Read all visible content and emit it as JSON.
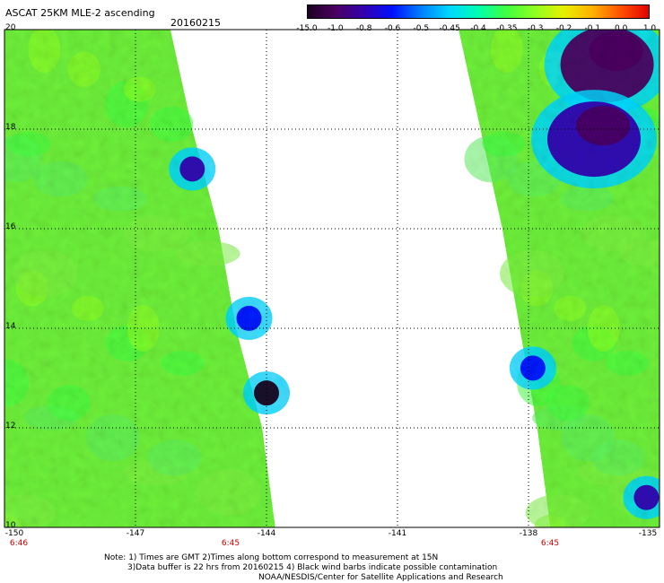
{
  "header": {
    "title": "ASCAT 25KM MLE-2 ascending",
    "date": "20160215"
  },
  "colorbar": {
    "labels": [
      "-15.0",
      "-1.0",
      "-0.8",
      "-0.6",
      "-0.5",
      "-0.45",
      "-0.4",
      "-0.35",
      "-0.3",
      "-0.2",
      "-0.1",
      "0.0",
      "1.0"
    ],
    "colors": [
      "#1a0020",
      "#4b0060",
      "#3300b0",
      "#0010ff",
      "#0080ff",
      "#00d8ff",
      "#00ffb0",
      "#40ff40",
      "#90ff20",
      "#e8f000",
      "#ffb000",
      "#ff5000",
      "#e00000"
    ]
  },
  "axes": {
    "y_labels": [
      "20",
      "18",
      "16",
      "14",
      "12",
      "10"
    ],
    "x_labels": [
      "-150",
      "-147",
      "-144",
      "-141",
      "-138",
      "-135"
    ],
    "time_labels": [
      "6:46",
      "6:45",
      "6:45"
    ]
  },
  "notes": {
    "line1": "Note: 1) Times are GMT 2)Times along bottom correspond to measurement at 15N",
    "line2": "3)Data buffer is 22 hrs from 20160215 4) Black wind barbs indicate possible contamination",
    "line3": "NOAA/NESDIS/Center for Satellite Applications and Research"
  },
  "map_data": {
    "lon_range": [
      -150,
      -135
    ],
    "lat_range": [
      10,
      20
    ],
    "left_swath": {
      "main_color": "#6ef03a",
      "west_edge_lon": -150,
      "east_edge": [
        [
          20,
          -146.2
        ],
        [
          18,
          -145.7
        ],
        [
          16,
          -145.1
        ],
        [
          14,
          -144.7
        ],
        [
          12,
          -144.1
        ],
        [
          10,
          -143.8
        ]
      ],
      "features": [
        {
          "value_class": "-0.8",
          "lat": 17.2,
          "lon": -145.7
        },
        {
          "value_class": "-0.6",
          "lat": 14.2,
          "lon": -144.4
        },
        {
          "value_class": "-15.0",
          "lat": 12.7,
          "lon": -144.0
        }
      ]
    },
    "right_swath": {
      "main_color": "#6ef03a",
      "east_edge_lon": -135,
      "west_edge": [
        [
          20,
          -139.6
        ],
        [
          18,
          -139.1
        ],
        [
          16,
          -138.6
        ],
        [
          14,
          -138.2
        ],
        [
          12,
          -137.8
        ],
        [
          10,
          -137.5
        ]
      ],
      "features": [
        {
          "value_class": "-1.0",
          "lat": 19.3,
          "lon": -136.2
        },
        {
          "value_class": "-0.8",
          "lat": 17.8,
          "lon": -136.5
        },
        {
          "value_class": "-0.6",
          "lat": 13.2,
          "lon": -137.9
        },
        {
          "value_class": "-0.8",
          "lat": 10.6,
          "lon": -135.3
        }
      ]
    }
  }
}
